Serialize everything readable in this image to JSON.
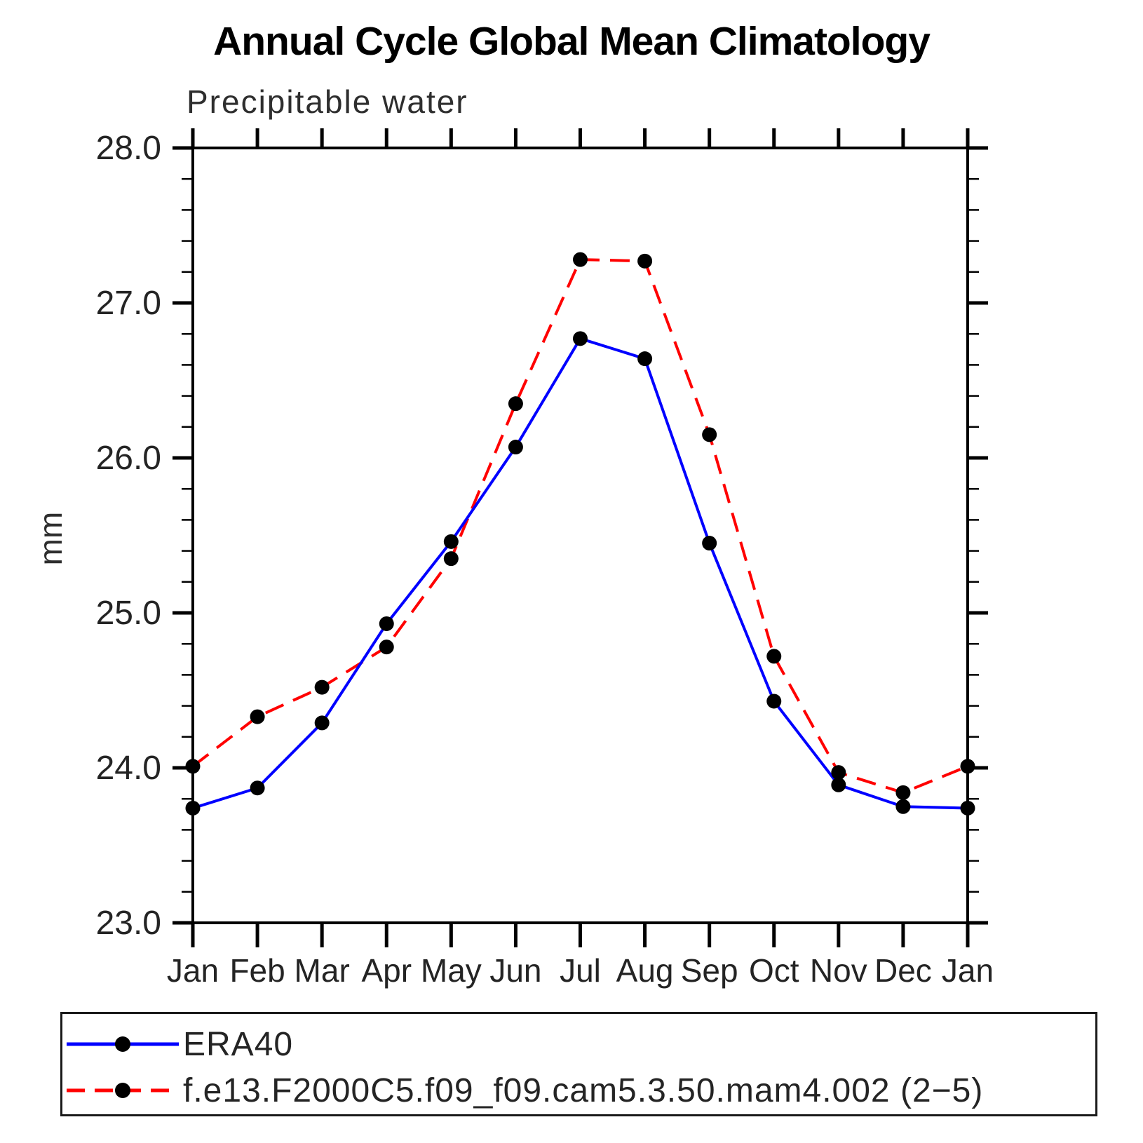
{
  "chart_data": {
    "type": "line",
    "title": "Annual Cycle Global Mean Climatology",
    "subtitle": "Precipitable water",
    "xlabel": "",
    "ylabel": "mm",
    "x_tick_labels": [
      "Jan",
      "Feb",
      "Mar",
      "Apr",
      "May",
      "Jun",
      "Jul",
      "Aug",
      "Sep",
      "Oct",
      "Nov",
      "Dec",
      "Jan"
    ],
    "ylim": [
      23.0,
      28.0
    ],
    "y_major_tick_step": 1.0,
    "y_minor_tick_step": 0.2,
    "y_major_tick_labels": [
      "23.0",
      "24.0",
      "25.0",
      "26.0",
      "27.0",
      "28.0"
    ],
    "grid": false,
    "frame": "box_with_outward_ticks",
    "legend_position": "bottom_box",
    "series": [
      {
        "name": "ERA40",
        "line_style": "solid",
        "line_color": "#0000ff",
        "marker": "circle",
        "marker_color": "#000000",
        "values": [
          23.74,
          23.87,
          24.29,
          24.93,
          25.46,
          26.07,
          26.77,
          26.64,
          25.45,
          24.43,
          23.89,
          23.75,
          23.74
        ]
      },
      {
        "name": "f.e13.F2000C5.f09_f09.cam5.3.50.mam4.002 (2−5)",
        "line_style": "dashed",
        "line_color": "#ff0000",
        "marker": "circle",
        "marker_color": "#000000",
        "values": [
          24.01,
          24.33,
          24.52,
          24.78,
          25.35,
          26.35,
          27.28,
          27.27,
          26.15,
          24.72,
          23.97,
          23.84,
          24.01
        ]
      }
    ]
  }
}
